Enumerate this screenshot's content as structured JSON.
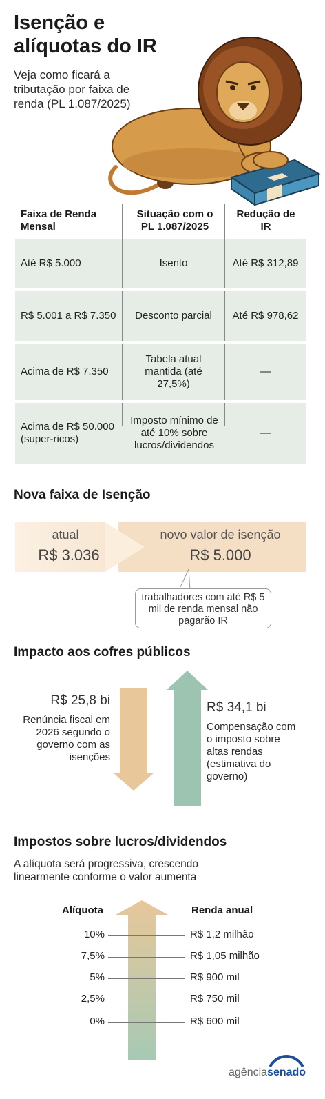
{
  "header": {
    "title": "Isenção e alíquotas do IR",
    "subtitle": "Veja como ficará a tributação por faixa de renda (PL 1.087/2025)"
  },
  "table": {
    "columns": [
      "Faixa de Renda Mensal",
      "Situação com o PL 1.087/2025",
      "Redução de IR"
    ],
    "rows": [
      {
        "faixa": "Até R$ 5.000",
        "situacao": "Isento",
        "reducao": "Até R$ 312,89"
      },
      {
        "faixa": "R$ 5.001 a R$ 7.350",
        "situacao": "Desconto parcial",
        "reducao": "Até R$ 978,62"
      },
      {
        "faixa": "Acima de R$ 7.350",
        "situacao": "Tabela atual mantida (até 27,5%)",
        "reducao": "—"
      },
      {
        "faixa": "Acima de R$ 50.000 (super-ricos)",
        "situacao": "Imposto mínimo de até 10% sobre lucros/dividendos",
        "reducao": "—"
      }
    ]
  },
  "isencao": {
    "heading": "Nova faixa de Isenção",
    "atual_label": "atual",
    "atual_value": "R$ 3.036",
    "novo_label": "novo valor de isenção",
    "novo_value": "R$ 5.000",
    "callout": "trabalhadores com até R$ 5 mil de renda mensal não pagarão IR"
  },
  "impacto": {
    "heading": "Impacto aos cofres públicos",
    "renuncia_value": "R$ 25,8 bi",
    "renuncia_text": "Renúncia fiscal em 2026 segundo o governo com as isenções",
    "compensacao_value": "R$ 34,1 bi",
    "compensacao_text": "Compensação com o imposto sobre altas rendas (estimativa do governo)",
    "colors": {
      "renuncia": "#e8c79a",
      "compensacao": "#9dc4b0"
    }
  },
  "dividendos": {
    "heading": "Impostos sobre lucros/dividendos",
    "description": "A alíquota será progressiva, crescendo linearmente conforme o valor aumenta",
    "left_label": "Alíquota",
    "right_label": "Renda anual",
    "levels": [
      {
        "aliquota": "10%",
        "renda": "R$ 1,2 milhão"
      },
      {
        "aliquota": "7,5%",
        "renda": "R$ 1,05 milhão"
      },
      {
        "aliquota": "5%",
        "renda": "R$ 900 mil"
      },
      {
        "aliquota": "2,5%",
        "renda": "R$ 750 mil"
      },
      {
        "aliquota": "0%",
        "renda": "R$ 600 mil"
      }
    ]
  },
  "footer": {
    "logo_prefix": "agência",
    "logo_brand": "senado"
  }
}
